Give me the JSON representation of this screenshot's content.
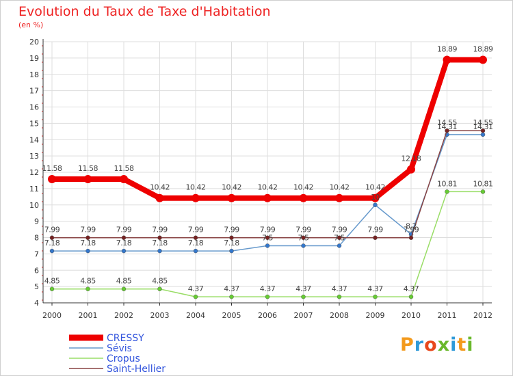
{
  "title": "Evolution du Taux de Taxe d'Habitation",
  "subtitle": "(en %)",
  "logo": {
    "text": "Proxiti",
    "colors": [
      "#f39a1c",
      "#2f9ad8",
      "#e8481c",
      "#6ab82b",
      "#2f9ad8",
      "#f39a1c",
      "#6ab82b"
    ]
  },
  "chart_data": {
    "type": "line",
    "x": [
      "2000",
      "2001",
      "2002",
      "2003",
      "2004",
      "2005",
      "2006",
      "2007",
      "2008",
      "2009",
      "2010",
      "2011",
      "2012"
    ],
    "ylim": [
      4,
      20
    ],
    "yticks": [
      "4",
      "5",
      "6",
      "7",
      "8",
      "9",
      "10",
      "11",
      "12",
      "13",
      "14",
      "15",
      "16",
      "17",
      "18",
      "19",
      "20"
    ],
    "grid": true,
    "legend_position": "bottom-left",
    "series": [
      {
        "name": "Cropus",
        "color": "#99dd66",
        "marker": "#66cc33",
        "values": [
          4.85,
          4.85,
          4.85,
          4.85,
          4.37,
          4.37,
          4.37,
          4.37,
          4.37,
          4.37,
          4.37,
          10.81,
          10.81
        ],
        "labels": [
          "4.85",
          "4.85",
          "4.85",
          "4.85",
          "4.37",
          "4.37",
          "4.37",
          "4.37",
          "4.37",
          "4.37",
          "4.37",
          "10.81",
          "10.81"
        ]
      },
      {
        "name": "Sévis",
        "color": "#6699cc",
        "marker": "#3377cc",
        "values": [
          7.18,
          7.18,
          7.18,
          7.18,
          7.18,
          7.18,
          7.5,
          7.5,
          7.5,
          10,
          8.2,
          14.31,
          14.31
        ],
        "labels": [
          "7.18",
          "7.18",
          "7.18",
          "7.18",
          "7.18",
          "7.18",
          "7.5",
          "7.5",
          "7.5",
          "10",
          "8.2",
          "14.31",
          "14.31"
        ]
      },
      {
        "name": "Saint-Hellier",
        "color": "#884444",
        "marker": "#772222",
        "values": [
          7.99,
          7.99,
          7.99,
          7.99,
          7.99,
          7.99,
          7.99,
          7.99,
          7.99,
          7.99,
          7.99,
          14.55,
          14.55
        ],
        "labels": [
          "7.99",
          "7.99",
          "7.99",
          "7.99",
          "7.99",
          "7.99",
          "7.99",
          "7.99",
          "7.99",
          "7.99",
          "7.99",
          "14.55",
          "14.55"
        ]
      },
      {
        "name": "CRESSY",
        "color": "#ee0000",
        "marker": "#ee0000",
        "values": [
          11.58,
          11.58,
          11.58,
          10.42,
          10.42,
          10.42,
          10.42,
          10.42,
          10.42,
          10.42,
          12.18,
          18.89,
          18.89
        ],
        "labels": [
          "11.58",
          "11.58",
          "11.58",
          "10.42",
          "10.42",
          "10.42",
          "10.42",
          "10.42",
          "10.42",
          "10.42",
          "12.18",
          "18.89",
          "18.89"
        ]
      }
    ],
    "legend_order": [
      "CRESSY",
      "Sévis",
      "Cropus",
      "Saint-Hellier"
    ]
  }
}
